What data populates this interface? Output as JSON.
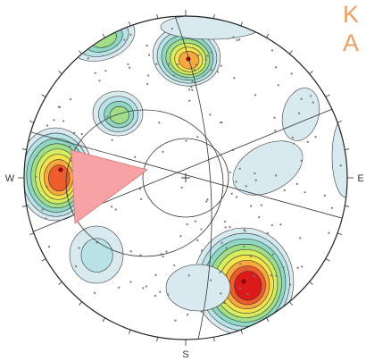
{
  "plot": {
    "compass": {
      "north": "",
      "east": "E",
      "south": "S",
      "west": "W"
    },
    "colors": {
      "background": "#ffffff",
      "primitive": "#222222",
      "tick": "#333333",
      "contour_line": "#2a2a2a",
      "point": "#777777",
      "wedge_fill": "#f7a3a6",
      "wedge_stroke": "#d9777c",
      "great_circle": "#333333",
      "pole": "#aa0000",
      "contour_fills": [
        "#d8e9ef",
        "#b8e2e6",
        "#8fd7c3",
        "#a2dd88",
        "#d6ec61",
        "#f5e34e",
        "#f8a83f",
        "#ee5c2c",
        "#dd1a1a"
      ]
    }
  },
  "corner_text": {
    "line1": "K",
    "line2": "A"
  }
}
